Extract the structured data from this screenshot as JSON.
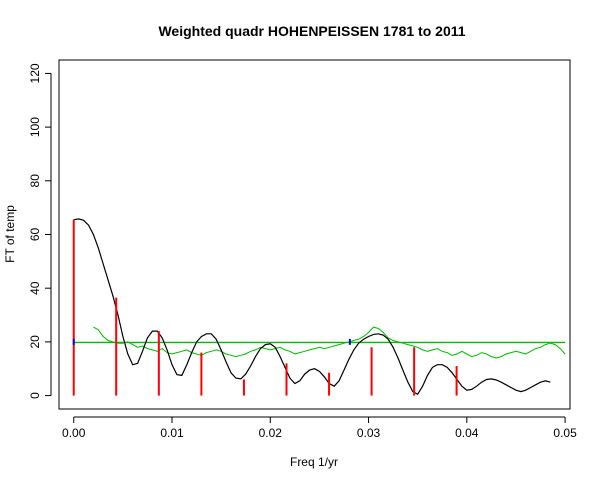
{
  "chart_data": {
    "type": "line",
    "title": "Weighted quadr HOHENPEISSEN 1781 to 2011",
    "xlabel": "Freq 1/yr",
    "ylabel": "FT of temp",
    "xlim": [
      -0.0015,
      0.0505
    ],
    "ylim": [
      -5,
      125
    ],
    "x_ticks": [
      0.0,
      0.01,
      0.02,
      0.03,
      0.04,
      0.05
    ],
    "x_tick_labels": [
      "0.00",
      "0.01",
      "0.02",
      "0.03",
      "0.04",
      "0.05"
    ],
    "y_ticks": [
      0,
      20,
      40,
      60,
      80,
      100,
      120
    ],
    "y_tick_labels": [
      "0",
      "20",
      "40",
      "60",
      "80",
      "100",
      "120"
    ],
    "grid": false,
    "colors": {
      "spectrum": "#000000",
      "harmonics": "#ff0000",
      "noise": "#00bb00",
      "threshold": "#00bb00",
      "markers": "#0000ff"
    },
    "series": [
      {
        "kind": "harmonic-bars",
        "x": [
          0.0,
          0.00432,
          0.00866,
          0.01299,
          0.01732,
          0.02165,
          0.02598,
          0.03031,
          0.03464,
          0.03896
        ],
        "values": [
          65.5,
          36.5,
          24.0,
          16.0,
          6.0,
          12.0,
          8.5,
          18.0,
          18.0,
          11.0
        ]
      },
      {
        "kind": "spectrum-curve",
        "x": [
          0.0,
          0.0005,
          0.001,
          0.0015,
          0.002,
          0.0025,
          0.003,
          0.0035,
          0.004,
          0.0045,
          0.005,
          0.0055,
          0.006,
          0.0065,
          0.007,
          0.0075,
          0.008,
          0.0085,
          0.009,
          0.0095,
          0.01,
          0.0105,
          0.011,
          0.0115,
          0.012,
          0.0125,
          0.013,
          0.0135,
          0.014,
          0.0145,
          0.015,
          0.0155,
          0.016,
          0.0165,
          0.017,
          0.0175,
          0.018,
          0.0185,
          0.019,
          0.0195,
          0.02,
          0.0205,
          0.021,
          0.0215,
          0.022,
          0.0225,
          0.023,
          0.0235,
          0.024,
          0.0245,
          0.025,
          0.0255,
          0.026,
          0.0265,
          0.027,
          0.0275,
          0.028,
          0.0285,
          0.029,
          0.0295,
          0.03,
          0.0305,
          0.031,
          0.0315,
          0.032,
          0.0325,
          0.033,
          0.0335,
          0.034,
          0.0345,
          0.035,
          0.0355,
          0.036,
          0.0365,
          0.037,
          0.0375,
          0.038,
          0.0385,
          0.039,
          0.0395,
          0.04,
          0.0405,
          0.041,
          0.0415,
          0.042,
          0.0425,
          0.043,
          0.0435,
          0.044,
          0.0445,
          0.045,
          0.0455,
          0.046,
          0.0465,
          0.047,
          0.0475,
          0.048,
          0.0485
        ],
        "values": [
          65.5,
          65.8,
          65.3,
          63.5,
          60.0,
          55.0,
          49.0,
          43.0,
          37.0,
          30.0,
          22.0,
          15.5,
          11.5,
          12.0,
          16.5,
          21.5,
          24.0,
          24.0,
          21.5,
          17.0,
          11.5,
          7.8,
          7.5,
          11.5,
          16.0,
          20.0,
          22.0,
          23.0,
          23.0,
          21.0,
          17.0,
          12.5,
          8.5,
          6.5,
          6.2,
          8.0,
          11.0,
          14.5,
          17.5,
          19.0,
          19.3,
          18.0,
          14.5,
          10.5,
          6.5,
          4.5,
          5.5,
          8.0,
          9.5,
          10.0,
          9.0,
          7.0,
          4.5,
          3.5,
          5.5,
          9.5,
          13.5,
          17.0,
          19.5,
          21.0,
          22.0,
          22.8,
          23.0,
          22.5,
          21.0,
          18.0,
          14.0,
          9.5,
          5.0,
          1.5,
          0.5,
          3.5,
          7.5,
          10.5,
          11.5,
          11.5,
          10.5,
          8.5,
          6.0,
          3.5,
          2.0,
          2.3,
          3.5,
          5.0,
          6.0,
          6.2,
          5.8,
          5.0,
          4.0,
          3.0,
          2.0,
          1.5,
          2.0,
          3.0,
          4.0,
          5.0,
          5.5,
          5.0
        ]
      },
      {
        "kind": "noise-band",
        "x": [
          0.002,
          0.0025,
          0.003,
          0.0035,
          0.004,
          0.0045,
          0.005,
          0.0055,
          0.006,
          0.0065,
          0.007,
          0.0075,
          0.008,
          0.0085,
          0.009,
          0.0095,
          0.01,
          0.0105,
          0.011,
          0.0115,
          0.012,
          0.0125,
          0.013,
          0.0135,
          0.014,
          0.0145,
          0.015,
          0.0155,
          0.016,
          0.0165,
          0.017,
          0.0175,
          0.018,
          0.0185,
          0.019,
          0.0195,
          0.02,
          0.0205,
          0.021,
          0.0215,
          0.022,
          0.0225,
          0.023,
          0.0235,
          0.024,
          0.0245,
          0.025,
          0.0255,
          0.026,
          0.0265,
          0.027,
          0.0275,
          0.028,
          0.0285,
          0.029,
          0.0295,
          0.03,
          0.0305,
          0.031,
          0.0315,
          0.032,
          0.0325,
          0.033,
          0.0335,
          0.034,
          0.0345,
          0.035,
          0.0355,
          0.036,
          0.0365,
          0.037,
          0.0375,
          0.038,
          0.0385,
          0.039,
          0.0395,
          0.04,
          0.0405,
          0.041,
          0.0415,
          0.042,
          0.0425,
          0.043,
          0.0435,
          0.044,
          0.0445,
          0.045,
          0.0455,
          0.046,
          0.0465,
          0.047,
          0.0475,
          0.048,
          0.0485,
          0.049,
          0.0495,
          0.05
        ],
        "values": [
          25.5,
          24.5,
          22.0,
          20.5,
          20.0,
          19.5,
          19.5,
          20.0,
          19.0,
          18.0,
          18.5,
          17.5,
          17.0,
          16.5,
          17.5,
          16.0,
          15.5,
          16.0,
          16.5,
          17.0,
          16.0,
          15.5,
          15.0,
          16.0,
          16.5,
          17.0,
          16.5,
          15.5,
          15.0,
          14.5,
          15.0,
          15.5,
          16.5,
          17.0,
          18.0,
          17.5,
          17.0,
          17.5,
          18.0,
          17.0,
          16.5,
          15.5,
          16.0,
          16.5,
          17.0,
          17.5,
          18.0,
          17.5,
          18.0,
          18.5,
          19.0,
          19.5,
          20.0,
          20.5,
          21.0,
          22.0,
          23.5,
          25.5,
          25.0,
          23.5,
          21.5,
          20.5,
          20.0,
          19.5,
          19.0,
          18.5,
          18.0,
          17.0,
          16.5,
          17.0,
          17.5,
          16.5,
          16.0,
          15.0,
          15.5,
          16.5,
          15.5,
          14.5,
          15.0,
          16.0,
          15.5,
          14.5,
          14.0,
          14.5,
          15.5,
          16.0,
          16.5,
          16.0,
          15.5,
          16.5,
          17.5,
          18.0,
          19.0,
          19.5,
          19.0,
          17.5,
          15.5
        ]
      },
      {
        "kind": "threshold-line",
        "x": [
          0.0,
          0.05
        ],
        "values": [
          19.8,
          19.8
        ]
      },
      {
        "kind": "markers",
        "x": [
          0.0,
          0.0281
        ],
        "values": [
          20.0,
          20.0
        ]
      }
    ]
  }
}
